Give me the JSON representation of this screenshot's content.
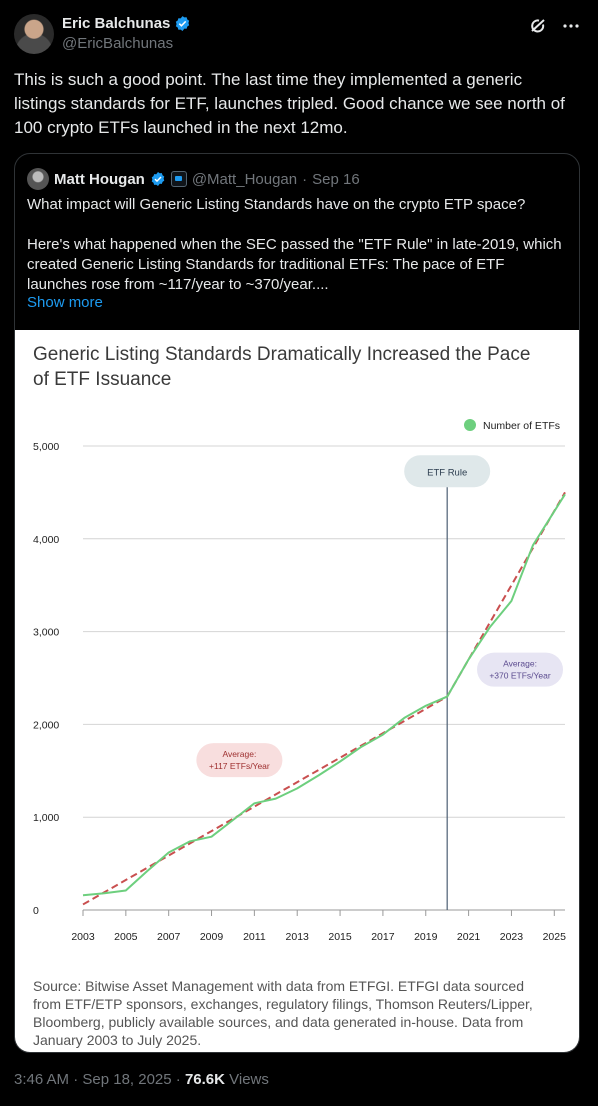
{
  "author": {
    "name": "Eric Balchunas",
    "handle": "@EricBalchunas"
  },
  "tweet": {
    "text": "This is such a good point. The last time they implemented a generic listings standards for ETF, launches tripled. Good chance we see north of 100 crypto ETFs launched in the next 12mo."
  },
  "quoted": {
    "name": "Matt Hougan",
    "handle": "@Matt_Hougan",
    "date": "Sep 16",
    "para1": "What impact will Generic Listing Standards have on the crypto ETP space?",
    "para2": "Here's what happened when the SEC passed the \"ETF Rule\" in late-2019, which created Generic Listing Standards for traditional ETFs: The pace of ETF launches rose from ~117/year to ~370/year....",
    "show_more": "Show more"
  },
  "footer": {
    "time": "3:46 AM · Sep 18, 2025 · ",
    "views_count": "76.6K",
    "views_label": " Views"
  },
  "colors": {
    "accent": "#1d9bf0",
    "line": "#6dcf7e",
    "dashed": "#c94f4f",
    "annotation": "#9e2f2f"
  },
  "chart_data": {
    "type": "line",
    "title_line1": "Generic Listing Standards Dramatically Increased the Pace",
    "title_line2": "of ETF Issuance",
    "legend": "Number of ETFs",
    "legend_position": "top-right",
    "x_ticks": [
      "2003",
      "2005",
      "2007",
      "2009",
      "2011",
      "2013",
      "2015",
      "2017",
      "2019",
      "2021",
      "2023",
      "2025"
    ],
    "y_ticks": [
      "0",
      "1,000",
      "2,000",
      "3,000",
      "4,000",
      "5,000"
    ],
    "xlim": [
      2003,
      2025.5
    ],
    "ylim": [
      0,
      5000
    ],
    "series": [
      {
        "name": "Number of ETFs",
        "x": [
          2003,
          2004,
          2005,
          2006,
          2007,
          2008,
          2009,
          2010,
          2011,
          2012,
          2013,
          2014,
          2015,
          2016,
          2017,
          2018,
          2019,
          2020,
          2021,
          2022,
          2023,
          2024,
          2025.5
        ],
        "y": [
          160,
          180,
          210,
          420,
          620,
          740,
          790,
          970,
          1150,
          1200,
          1310,
          1450,
          1600,
          1760,
          1890,
          2070,
          2200,
          2300,
          2700,
          3050,
          3330,
          3930,
          4480
        ]
      }
    ],
    "trend_lines": [
      {
        "x": [
          2003,
          2020
        ],
        "y": [
          60,
          2300
        ]
      },
      {
        "x": [
          2020,
          2025.5
        ],
        "y": [
          2300,
          4500
        ]
      }
    ],
    "event_x": 2020,
    "event_label": "ETF Rule",
    "annotations": [
      {
        "line1": "Average:",
        "line2": "+117 ETFs/Year",
        "x": 2010.3,
        "y": 1615
      },
      {
        "line1": "Average:",
        "line2": "+370 ETFs/Year",
        "x": 2023.4,
        "y": 2590
      }
    ],
    "source": [
      "Source: Bitwise Asset Management with data from ETFGI. ETFGI data sourced",
      "from ETF/ETP sponsors, exchanges, regulatory filings, Thomson Reuters/Lipper,",
      "Bloomberg, publicly available sources, and data generated in-house. Data from",
      "January 2003 to July 2025."
    ]
  }
}
